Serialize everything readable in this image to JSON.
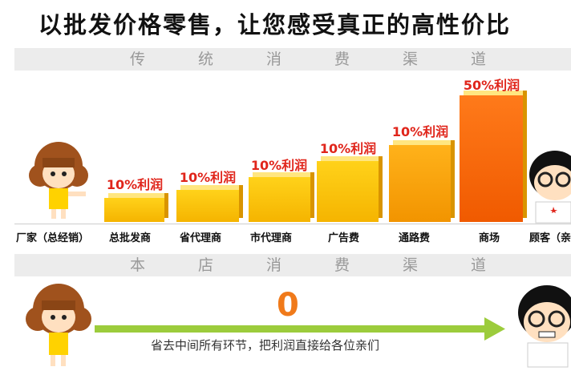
{
  "title": "以批发价格零售，让您感受真正的高性价比",
  "traditional": {
    "header": "传统消费渠道",
    "steps": [
      {
        "label": "厂家（总经销）"
      },
      {
        "label": "总批发商",
        "profit": "10%利润"
      },
      {
        "label": "省代理商",
        "profit": "10%利润"
      },
      {
        "label": "市代理商",
        "profit": "10%利润"
      },
      {
        "label": "广告费",
        "profit": "10%利润"
      },
      {
        "label": "通路费",
        "profit": "10%利润"
      },
      {
        "label": "商场",
        "profit": "50%利润"
      },
      {
        "label": "顾客（亲"
      }
    ]
  },
  "store": {
    "header": "本店消费渠道",
    "amount": "0",
    "caption": "省去中间所有环节，把利润直接给各位亲们"
  }
}
